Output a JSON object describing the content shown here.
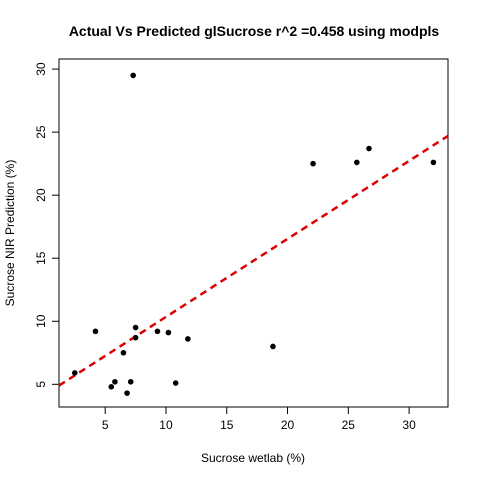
{
  "chart_data": {
    "type": "scatter",
    "title": "Actual Vs Predicted glSucrose r^2 =0.458 using modpls",
    "xlabel": "Sucrose wetlab (%)",
    "ylabel": "Sucrose NIR Prediction (%)",
    "xlim": [
      1.2,
      33.2
    ],
    "ylim": [
      3.2,
      30.8
    ],
    "xticks": [
      5,
      10,
      15,
      20,
      25,
      30
    ],
    "yticks": [
      5,
      10,
      15,
      20,
      25,
      30
    ],
    "grid": false,
    "point_color": "#000000",
    "trend_color": "#dd0000",
    "trend_style": "dashed",
    "points": [
      {
        "x": 2.5,
        "y": 5.9
      },
      {
        "x": 4.2,
        "y": 9.2
      },
      {
        "x": 5.5,
        "y": 4.8
      },
      {
        "x": 5.8,
        "y": 5.2
      },
      {
        "x": 6.5,
        "y": 7.5
      },
      {
        "x": 6.8,
        "y": 4.3
      },
      {
        "x": 7.1,
        "y": 5.2
      },
      {
        "x": 7.3,
        "y": 29.5
      },
      {
        "x": 7.5,
        "y": 8.7
      },
      {
        "x": 7.5,
        "y": 9.5
      },
      {
        "x": 9.3,
        "y": 9.2
      },
      {
        "x": 10.2,
        "y": 9.1
      },
      {
        "x": 10.8,
        "y": 5.1
      },
      {
        "x": 11.8,
        "y": 8.6
      },
      {
        "x": 18.8,
        "y": 8.0
      },
      {
        "x": 22.1,
        "y": 22.5
      },
      {
        "x": 25.7,
        "y": 22.6
      },
      {
        "x": 26.7,
        "y": 23.7
      },
      {
        "x": 32.0,
        "y": 22.6
      }
    ],
    "trend_line": [
      {
        "x": 1.2,
        "y": 4.9
      },
      {
        "x": 33.2,
        "y": 24.7
      }
    ]
  }
}
